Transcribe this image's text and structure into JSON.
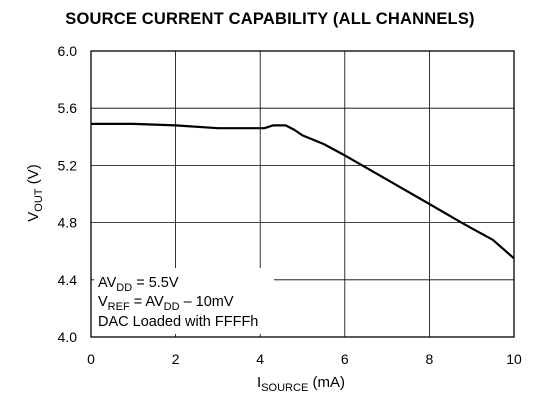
{
  "chart_data": {
    "type": "line",
    "title": "SOURCE CURRENT CAPABILITY (ALL CHANNELS)",
    "xlabel": {
      "main": "I",
      "sub": "SOURCE",
      "unit": " (mA)"
    },
    "ylabel": {
      "main": "V",
      "sub": "OUT",
      "unit": " (V)"
    },
    "xlim": [
      0,
      10
    ],
    "ylim": [
      4.0,
      6.0
    ],
    "x_ticks": [
      "0",
      "2",
      "4",
      "6",
      "8",
      "10"
    ],
    "y_ticks": [
      "4.0",
      "4.4",
      "4.8",
      "5.2",
      "5.6",
      "6.0"
    ],
    "grid": true,
    "series": [
      {
        "x": [
          0,
          1,
          2,
          3,
          4,
          4.1,
          4.3,
          4.6,
          4.8,
          5,
          5.5,
          6,
          7,
          8,
          8.7,
          9,
          9.5,
          10
        ],
        "y": [
          5.49,
          5.49,
          5.48,
          5.46,
          5.46,
          5.46,
          5.48,
          5.48,
          5.45,
          5.41,
          5.35,
          5.27,
          5.1,
          4.93,
          4.81,
          4.76,
          4.68,
          4.55
        ],
        "color": "#000000"
      }
    ],
    "annotations": [
      {
        "main": "AV",
        "sub": "DD",
        "rest": " = 5.5V"
      },
      {
        "main": "V",
        "sub": "REF",
        "mid": " = AV",
        "sub2": "DD",
        "rest": " – 10mV"
      },
      {
        "main": "DAC Loaded with FFFFh"
      }
    ]
  }
}
